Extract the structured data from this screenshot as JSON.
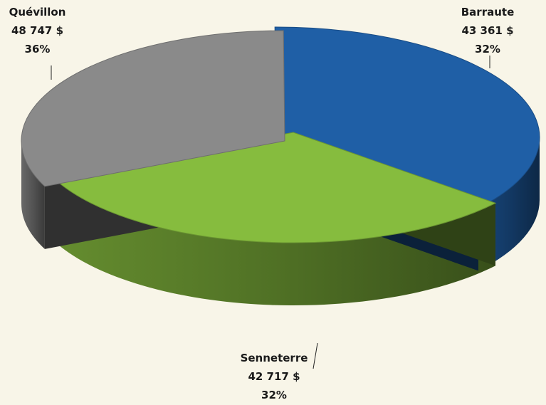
{
  "chart_data": {
    "type": "pie",
    "style": "3d-exploded",
    "title": "",
    "slices": [
      {
        "label": "Quévillon",
        "value": 48747,
        "value_label": "48 747  $",
        "percent_label": "36%",
        "color": "#1f5fa6"
      },
      {
        "label": "Barraute",
        "value": 43361,
        "value_label": "43 361  $",
        "percent_label": "32%",
        "color": "#86bc3e"
      },
      {
        "label": "Senneterre",
        "value": 42717,
        "value_label": "42 717  $",
        "percent_label": "32%",
        "color": "#8a8a8a"
      }
    ],
    "legend": "none"
  }
}
